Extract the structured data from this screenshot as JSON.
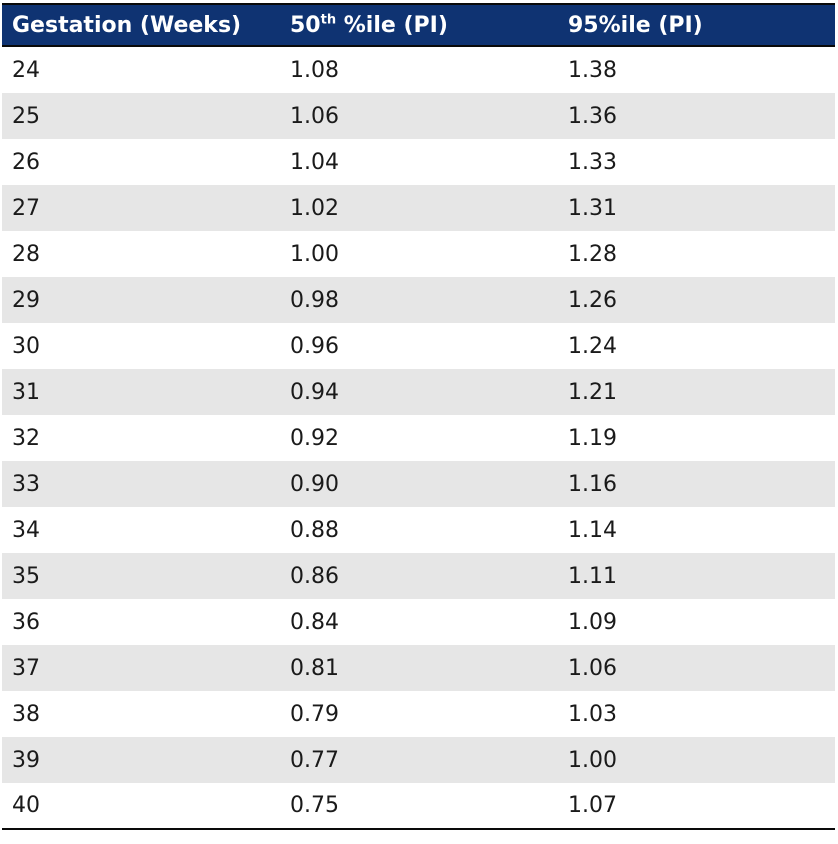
{
  "table": {
    "headers": {
      "gestation": "Gestation (Weeks)",
      "p50_pre": "50",
      "p50_sup": "th",
      "p50_post": " %ile (PI)",
      "p95": "95%ile (PI)"
    },
    "rows": [
      {
        "weeks": "24",
        "p50": "1.08",
        "p95": "1.38"
      },
      {
        "weeks": "25",
        "p50": "1.06",
        "p95": "1.36"
      },
      {
        "weeks": "26",
        "p50": "1.04",
        "p95": "1.33"
      },
      {
        "weeks": "27",
        "p50": "1.02",
        "p95": "1.31"
      },
      {
        "weeks": "28",
        "p50": "1.00",
        "p95": "1.28"
      },
      {
        "weeks": "29",
        "p50": "0.98",
        "p95": "1.26"
      },
      {
        "weeks": "30",
        "p50": "0.96",
        "p95": "1.24"
      },
      {
        "weeks": "31",
        "p50": "0.94",
        "p95": "1.21"
      },
      {
        "weeks": "32",
        "p50": "0.92",
        "p95": "1.19"
      },
      {
        "weeks": "33",
        "p50": "0.90",
        "p95": "1.16"
      },
      {
        "weeks": "34",
        "p50": "0.88",
        "p95": "1.14"
      },
      {
        "weeks": "35",
        "p50": "0.86",
        "p95": "1.11"
      },
      {
        "weeks": "36",
        "p50": "0.84",
        "p95": "1.09"
      },
      {
        "weeks": "37",
        "p50": "0.81",
        "p95": "1.06"
      },
      {
        "weeks": "38",
        "p50": "0.79",
        "p95": "1.03"
      },
      {
        "weeks": "39",
        "p50": "0.77",
        "p95": "1.00"
      },
      {
        "weeks": "40",
        "p50": "0.75",
        "p95": "1.07"
      }
    ]
  },
  "colors": {
    "header_bg": "#0f3372",
    "header_text": "#ffffff",
    "stripe": "#e6e6e6"
  }
}
